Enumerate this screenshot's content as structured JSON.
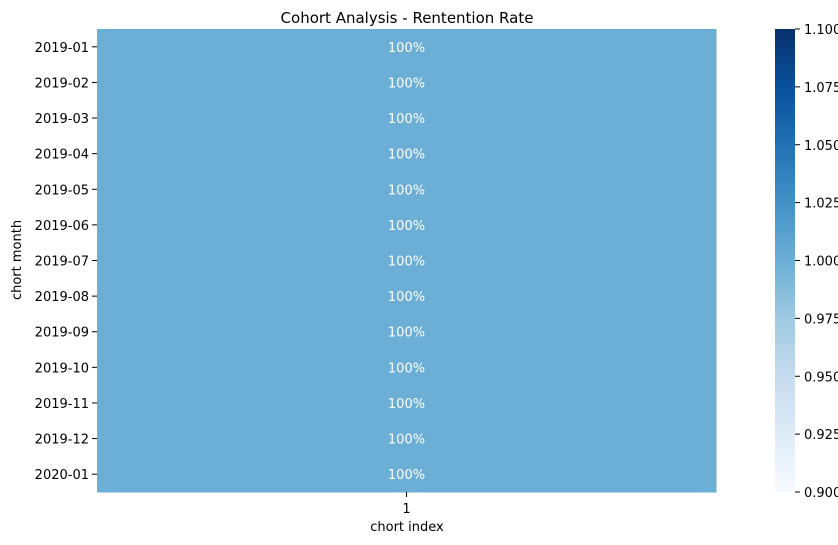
{
  "chart_data": {
    "type": "heatmap",
    "title": "Cohort Analysis - Rentention Rate",
    "xlabel": "chort index",
    "ylabel": "chort month",
    "x_categories": [
      "1"
    ],
    "y_categories": [
      "2019-01",
      "2019-02",
      "2019-03",
      "2019-04",
      "2019-05",
      "2019-06",
      "2019-07",
      "2019-08",
      "2019-09",
      "2019-10",
      "2019-11",
      "2019-12",
      "2020-01"
    ],
    "values": [
      [
        1.0
      ],
      [
        1.0
      ],
      [
        1.0
      ],
      [
        1.0
      ],
      [
        1.0
      ],
      [
        1.0
      ],
      [
        1.0
      ],
      [
        1.0
      ],
      [
        1.0
      ],
      [
        1.0
      ],
      [
        1.0
      ],
      [
        1.0
      ],
      [
        1.0
      ]
    ],
    "cell_labels": [
      [
        "100%"
      ],
      [
        "100%"
      ],
      [
        "100%"
      ],
      [
        "100%"
      ],
      [
        "100%"
      ],
      [
        "100%"
      ],
      [
        "100%"
      ],
      [
        "100%"
      ],
      [
        "100%"
      ],
      [
        "100%"
      ],
      [
        "100%"
      ],
      [
        "100%"
      ],
      [
        "100%"
      ]
    ],
    "colorbar": {
      "vmin": 0.9,
      "vmax": 1.1,
      "ticks": [
        0.9,
        0.925,
        0.95,
        0.975,
        1.0,
        1.025,
        1.05,
        1.075,
        1.1
      ],
      "tick_labels": [
        "0.900",
        "0.925",
        "0.950",
        "0.975",
        "1.000",
        "1.025",
        "1.050",
        "1.075",
        "1.100"
      ],
      "colormap": "Blues",
      "color_stops": [
        "#f7fbff",
        "#deebf7",
        "#c6dbef",
        "#9ecae1",
        "#6baed6",
        "#4292c6",
        "#2171b5",
        "#08519c",
        "#08306b"
      ]
    },
    "annotation_color": "#ffffff",
    "grid": false
  }
}
